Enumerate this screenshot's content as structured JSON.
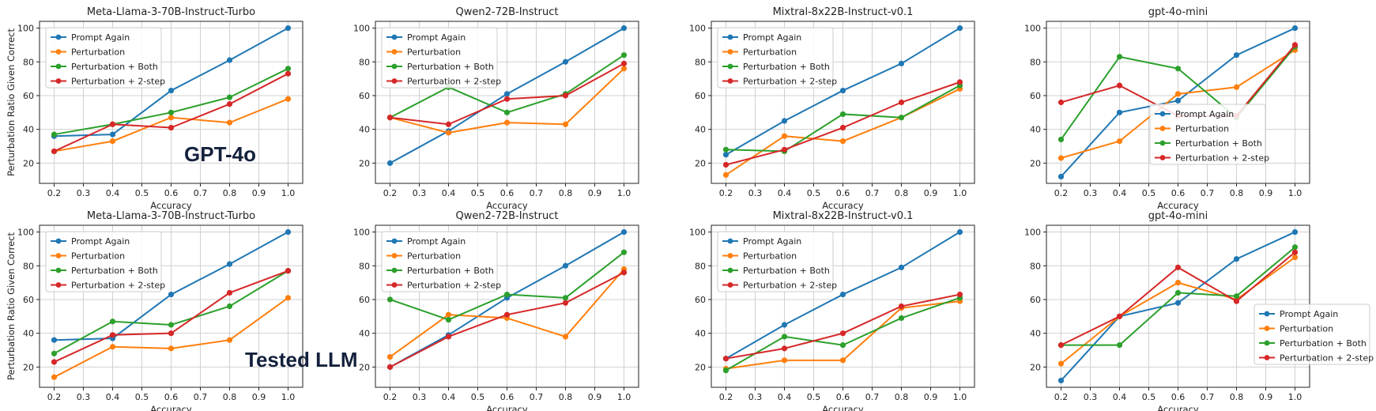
{
  "overlays": {
    "top": "GPT-4o",
    "bottom": "Tested LLM"
  },
  "series_colors": {
    "Prompt Again": "#1f77b4",
    "Perturbation": "#ff7f0e",
    "Perturbation + Both": "#2ca02c",
    "Perturbation + 2-step": "#d62728"
  },
  "chart_data": [
    {
      "type": "line",
      "title": "Meta-Llama-3-70B-Instruct-Turbo",
      "xlabel": "Accuracy",
      "ylabel": "Perturbation Ratio Given Correct",
      "xlim": [
        0.15,
        1.05
      ],
      "ylim": [
        8,
        104
      ],
      "grid": true,
      "legend": "top-left",
      "x": [
        0.2,
        0.4,
        0.6,
        0.8,
        1.0
      ],
      "series": [
        {
          "name": "Prompt Again",
          "values": [
            36,
            37,
            63,
            81,
            100
          ]
        },
        {
          "name": "Perturbation",
          "values": [
            27,
            33,
            47,
            44,
            58
          ]
        },
        {
          "name": "Perturbation + Both",
          "values": [
            37,
            43,
            50,
            59,
            76
          ]
        },
        {
          "name": "Perturbation + 2-step",
          "values": [
            27,
            43,
            41,
            55,
            73
          ]
        }
      ]
    },
    {
      "type": "line",
      "title": "Qwen2-72B-Instruct",
      "xlabel": "Accuracy",
      "ylabel": "",
      "xlim": [
        0.15,
        1.05
      ],
      "ylim": [
        8,
        104
      ],
      "grid": true,
      "legend": "top-left",
      "x": [
        0.2,
        0.4,
        0.6,
        0.8,
        1.0
      ],
      "series": [
        {
          "name": "Prompt Again",
          "values": [
            20,
            39,
            61,
            80,
            100
          ]
        },
        {
          "name": "Perturbation",
          "values": [
            47,
            38,
            44,
            43,
            76
          ]
        },
        {
          "name": "Perturbation + Both",
          "values": [
            47,
            65,
            50,
            61,
            84
          ]
        },
        {
          "name": "Perturbation + 2-step",
          "values": [
            47,
            43,
            58,
            60,
            79
          ]
        }
      ]
    },
    {
      "type": "line",
      "title": "Mixtral-8x22B-Instruct-v0.1",
      "xlabel": "Accuracy",
      "ylabel": "",
      "xlim": [
        0.15,
        1.05
      ],
      "ylim": [
        8,
        104
      ],
      "grid": true,
      "legend": "top-left",
      "x": [
        0.2,
        0.4,
        0.6,
        0.8,
        1.0
      ],
      "series": [
        {
          "name": "Prompt Again",
          "values": [
            25,
            45,
            63,
            79,
            100
          ]
        },
        {
          "name": "Perturbation",
          "values": [
            13,
            36,
            33,
            47,
            64
          ]
        },
        {
          "name": "Perturbation + Both",
          "values": [
            28,
            27,
            49,
            47,
            66
          ]
        },
        {
          "name": "Perturbation + 2-step",
          "values": [
            19,
            28,
            41,
            56,
            68
          ]
        }
      ]
    },
    {
      "type": "line",
      "title": "gpt-4o-mini",
      "xlabel": "Accuracy",
      "ylabel": "",
      "xlim": [
        0.15,
        1.05
      ],
      "ylim": [
        8,
        104
      ],
      "grid": true,
      "legend": "center",
      "x": [
        0.2,
        0.4,
        0.6,
        0.8,
        1.0
      ],
      "series": [
        {
          "name": "Prompt Again",
          "values": [
            12,
            50,
            57,
            84,
            100
          ]
        },
        {
          "name": "Perturbation",
          "values": [
            23,
            33,
            61,
            65,
            87
          ]
        },
        {
          "name": "Perturbation + Both",
          "values": [
            34,
            83,
            76,
            47,
            89
          ]
        },
        {
          "name": "Perturbation + 2-step",
          "values": [
            56,
            66,
            48,
            48,
            90
          ]
        }
      ]
    },
    {
      "type": "line",
      "title": "Meta-Llama-3-70B-Instruct-Turbo",
      "xlabel": "Accuracy",
      "ylabel": "Perturbation Ratio Given Correct",
      "xlim": [
        0.15,
        1.05
      ],
      "ylim": [
        8,
        104
      ],
      "grid": true,
      "legend": "top-left",
      "x": [
        0.2,
        0.4,
        0.6,
        0.8,
        1.0
      ],
      "series": [
        {
          "name": "Prompt Again",
          "values": [
            36,
            37,
            63,
            81,
            100
          ]
        },
        {
          "name": "Perturbation",
          "values": [
            14,
            32,
            31,
            36,
            61
          ]
        },
        {
          "name": "Perturbation + Both",
          "values": [
            28,
            47,
            45,
            56,
            77
          ]
        },
        {
          "name": "Perturbation + 2-step",
          "values": [
            23,
            39,
            40,
            64,
            77
          ]
        }
      ]
    },
    {
      "type": "line",
      "title": "Qwen2-72B-Instruct",
      "xlabel": "Accuracy",
      "ylabel": "",
      "xlim": [
        0.15,
        1.05
      ],
      "ylim": [
        8,
        104
      ],
      "grid": true,
      "legend": "top-left",
      "x": [
        0.2,
        0.4,
        0.6,
        0.8,
        1.0
      ],
      "series": [
        {
          "name": "Prompt Again",
          "values": [
            20,
            39,
            61,
            80,
            100
          ]
        },
        {
          "name": "Perturbation",
          "values": [
            26,
            51,
            49,
            38,
            78
          ]
        },
        {
          "name": "Perturbation + Both",
          "values": [
            60,
            48,
            63,
            61,
            88
          ]
        },
        {
          "name": "Perturbation + 2-step",
          "values": [
            20,
            38,
            51,
            58,
            76
          ]
        }
      ]
    },
    {
      "type": "line",
      "title": "Mixtral-8x22B-Instruct-v0.1",
      "xlabel": "Accuracy",
      "ylabel": "",
      "xlim": [
        0.15,
        1.05
      ],
      "ylim": [
        8,
        104
      ],
      "grid": true,
      "legend": "top-left",
      "x": [
        0.2,
        0.4,
        0.6,
        0.8,
        1.0
      ],
      "series": [
        {
          "name": "Prompt Again",
          "values": [
            25,
            45,
            63,
            79,
            100
          ]
        },
        {
          "name": "Perturbation",
          "values": [
            19,
            24,
            24,
            55,
            59
          ]
        },
        {
          "name": "Perturbation + Both",
          "values": [
            18,
            38,
            33,
            49,
            61
          ]
        },
        {
          "name": "Perturbation + 2-step",
          "values": [
            25,
            31,
            40,
            56,
            63
          ]
        }
      ]
    },
    {
      "type": "line",
      "title": "gpt-4o-mini",
      "xlabel": "Accuracy",
      "ylabel": "",
      "xlim": [
        0.15,
        1.05
      ],
      "ylim": [
        8,
        104
      ],
      "grid": true,
      "legend": "bottom-right",
      "x": [
        0.2,
        0.4,
        0.6,
        0.8,
        1.0
      ],
      "series": [
        {
          "name": "Prompt Again",
          "values": [
            12,
            50,
            58,
            84,
            100
          ]
        },
        {
          "name": "Perturbation",
          "values": [
            22,
            50,
            70,
            60,
            85
          ]
        },
        {
          "name": "Perturbation + Both",
          "values": [
            33,
            33,
            64,
            62,
            91
          ]
        },
        {
          "name": "Perturbation + 2-step",
          "values": [
            33,
            50,
            79,
            59,
            88
          ]
        }
      ]
    }
  ]
}
